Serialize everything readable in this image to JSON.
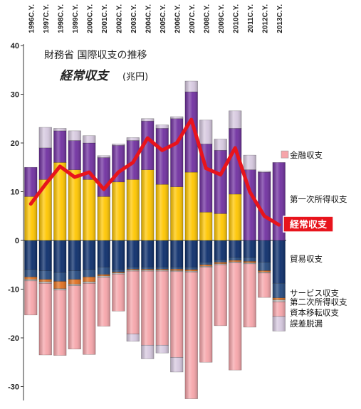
{
  "chart_data": {
    "type": "bar",
    "stacked": true,
    "title": "財務省 国際収支の推移",
    "subtitle": "経常収支",
    "unit": "(兆円)",
    "ylim": [
      -33,
      40
    ],
    "yticks": [
      40,
      30,
      20,
      10,
      0,
      -10,
      -20,
      -30
    ],
    "categories": [
      "1996C.Y.",
      "1997C.Y.",
      "1998C.Y.",
      "1999C.Y.",
      "2000C.Y.",
      "2001C.Y.",
      "2002C.Y.",
      "2003C.Y.",
      "2004C.Y.",
      "2005C.Y.",
      "2006C.Y.",
      "2007C.Y.",
      "2008C.Y.",
      "2009C.Y.",
      "2010C.Y.",
      "2011C.Y.",
      "2012C.Y.",
      "2013C.Y."
    ],
    "series": [
      {
        "name": "貿易収支",
        "color": "#0b2d6b",
        "values": [
          -6.0,
          -6.2,
          -6.6,
          -6.2,
          -6.0,
          -5.5,
          -6.0,
          -5.5,
          -5.5,
          -5.5,
          -5.5,
          -5.5,
          -4.5,
          -4.0,
          -3.5,
          -3.5,
          -4.5,
          -8.8
        ]
      },
      {
        "name": "サービス収支",
        "color": "#23487e",
        "values": [
          -1.5,
          -1.8,
          -1.8,
          -1.8,
          -1.5,
          -1.5,
          -0.5,
          -0.4,
          -0.4,
          -0.4,
          -0.4,
          -0.5,
          -0.5,
          -0.5,
          -0.6,
          -0.8,
          -1.7,
          -3.0
        ]
      },
      {
        "name": "第二次所得収支",
        "color": "#e0701f",
        "values": [
          -0.5,
          -0.5,
          -1.5,
          -1.0,
          -1.0,
          -0.3,
          -0.2,
          -0.2,
          -0.2,
          -0.2,
          -0.3,
          -0.3,
          -0.3,
          -0.3,
          -0.3,
          -0.3,
          -0.3,
          -0.4
        ]
      },
      {
        "name": "資本移転収支",
        "color": "#bfbfbf",
        "values": [
          -0.3,
          -0.3,
          -0.3,
          -0.3,
          -0.3,
          -0.3,
          -0.2,
          -0.2,
          -0.2,
          -0.2,
          -0.2,
          -0.2,
          -0.2,
          -0.2,
          -0.2,
          -0.2,
          -0.2,
          -0.4
        ]
      },
      {
        "name": "金融収支",
        "color": "#f6a5aa",
        "values": [
          -7.0,
          -14.7,
          -13.4,
          -13.0,
          -14.6,
          -10.0,
          -7.6,
          -12.9,
          -15.2,
          -15.2,
          -17.6,
          -26.0,
          -19.5,
          -12.5,
          -22.0,
          -13.0,
          -5.0,
          -3.0
        ]
      },
      {
        "name": "誤差脱漏",
        "color": "#d6c8df",
        "values": [
          0,
          0,
          0,
          0,
          0,
          0,
          0,
          -1.5,
          -2.8,
          -1.6,
          -3.0,
          0,
          0,
          0,
          0,
          0,
          0,
          -3.0
        ]
      },
      {
        "name": "第一次所得収支",
        "color": "#ffc600",
        "values": [
          9.0,
          12.5,
          16.0,
          14.5,
          12.5,
          9.0,
          12.0,
          12.5,
          14.5,
          11.5,
          11.0,
          14.0,
          5.8,
          5.5,
          9.5,
          0,
          0,
          0
        ]
      },
      {
        "name": "",
        "color": "#7030a0",
        "values": [
          6.0,
          6.5,
          6.5,
          6.0,
          7.5,
          8.0,
          7.5,
          8.0,
          10.0,
          11.5,
          14.0,
          16.5,
          14.0,
          13.0,
          13.5,
          14.5,
          14.0,
          16.0
        ]
      },
      {
        "name": "",
        "color": "#d6c8df",
        "values": [
          0,
          4.2,
          0.5,
          2.0,
          1.5,
          0.4,
          0.3,
          0.6,
          0.5,
          0.7,
          0.4,
          2.2,
          4.9,
          2.3,
          3.6,
          3.0,
          0.2,
          0
        ]
      },
      {
        "name": "経常収支",
        "type": "line",
        "color": "#e8141c",
        "values": [
          7.5,
          11.5,
          15.2,
          13.0,
          14.0,
          10.5,
          14.0,
          16.0,
          21.0,
          18.5,
          20.0,
          24.8,
          14.8,
          13.5,
          19.0,
          10.0,
          5.0,
          3.2
        ]
      }
    ],
    "legend_labels": [
      {
        "key": "kinyu",
        "text": "金融収支",
        "color": "#f6a5aa",
        "value": 17.5
      },
      {
        "key": "dai1",
        "text": "第一次所得収支",
        "color": "",
        "value": 8.5
      },
      {
        "key": "boeki",
        "text": "貿易収支",
        "color": "",
        "value": -3.8
      },
      {
        "key": "service",
        "text": "サービス収支",
        "color": "",
        "value": -10.8
      },
      {
        "key": "dai2",
        "text": "第二次所得収支",
        "color": "",
        "value": -12.6
      },
      {
        "key": "shihon",
        "text": "資本移転収支",
        "color": "",
        "value": -14.8
      },
      {
        "key": "gosa",
        "text": "誤差脱漏",
        "color": "",
        "value": -17.1
      }
    ],
    "callout": {
      "text": "経常収支",
      "value": 3.2
    },
    "grid": false
  }
}
